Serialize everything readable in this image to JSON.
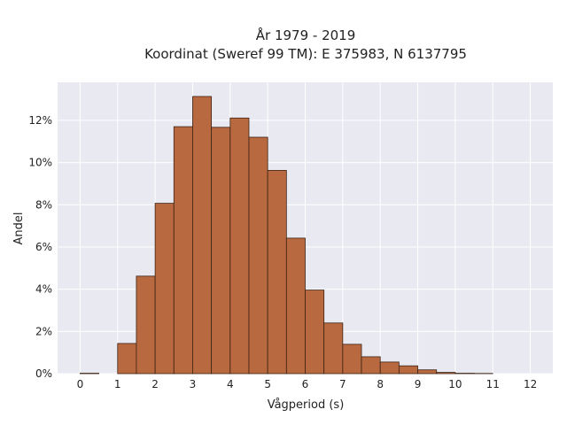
{
  "chart_data": {
    "type": "bar",
    "title_line1": "År 1979 - 2019",
    "title_line2": "Koordinat (Sweref 99 TM): E 375983, N 6137795",
    "xlabel": "Vågperiod (s)",
    "ylabel": "Andel",
    "xlim": [
      -0.6,
      12.6
    ],
    "ylim": [
      0,
      0.138
    ],
    "bin_width": 0.5,
    "x_ticks": [
      0,
      1,
      2,
      3,
      4,
      5,
      6,
      7,
      8,
      9,
      10,
      11,
      12
    ],
    "x_tick_labels": [
      "0",
      "1",
      "2",
      "3",
      "4",
      "5",
      "6",
      "7",
      "8",
      "9",
      "10",
      "11",
      "12"
    ],
    "y_ticks": [
      0,
      0.02,
      0.04,
      0.06,
      0.08,
      0.1,
      0.12
    ],
    "y_tick_labels": [
      "0%",
      "2%",
      "4%",
      "6%",
      "8%",
      "10%",
      "12%"
    ],
    "bins": [
      {
        "start": 0.0,
        "value": 0.0002
      },
      {
        "start": 0.5,
        "value": 0.0
      },
      {
        "start": 1.0,
        "value": 0.0143
      },
      {
        "start": 1.5,
        "value": 0.0462
      },
      {
        "start": 2.0,
        "value": 0.0807
      },
      {
        "start": 2.5,
        "value": 0.117
      },
      {
        "start": 3.0,
        "value": 0.1313
      },
      {
        "start": 3.5,
        "value": 0.1167
      },
      {
        "start": 4.0,
        "value": 0.1211
      },
      {
        "start": 4.5,
        "value": 0.112
      },
      {
        "start": 5.0,
        "value": 0.0963
      },
      {
        "start": 5.5,
        "value": 0.0642
      },
      {
        "start": 6.0,
        "value": 0.0396
      },
      {
        "start": 6.5,
        "value": 0.024
      },
      {
        "start": 7.0,
        "value": 0.0139
      },
      {
        "start": 7.5,
        "value": 0.008
      },
      {
        "start": 8.0,
        "value": 0.0055
      },
      {
        "start": 8.5,
        "value": 0.0037
      },
      {
        "start": 9.0,
        "value": 0.0018
      },
      {
        "start": 9.5,
        "value": 0.0006
      },
      {
        "start": 10.0,
        "value": 0.0002
      },
      {
        "start": 10.5,
        "value": 0.0001
      },
      {
        "start": 11.0,
        "value": 0.0
      },
      {
        "start": 11.5,
        "value": 0.0
      }
    ],
    "grid": true,
    "colors": {
      "bar_fill": "#b8693f",
      "bar_edge": "#3d2314",
      "plot_background": "#e9e9f1",
      "grid": "#ffffff"
    }
  }
}
